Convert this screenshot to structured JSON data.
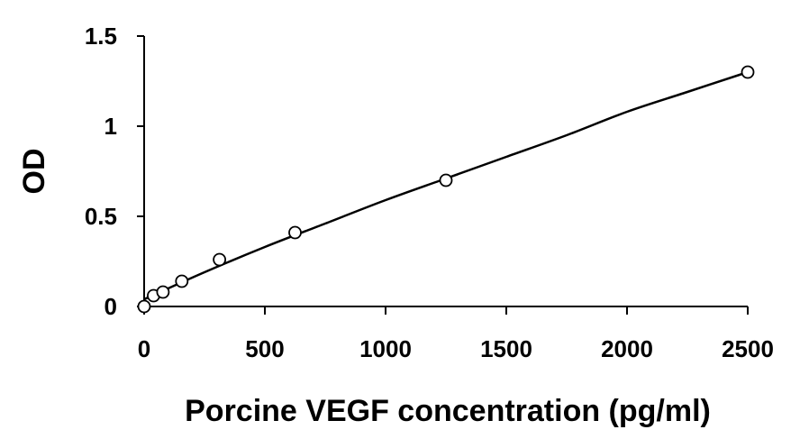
{
  "chart_data": {
    "type": "scatter",
    "title": "",
    "xlabel": "Porcine VEGF concentration (pg/ml)",
    "ylabel": "OD",
    "xlim": [
      0,
      2500
    ],
    "ylim": [
      0,
      1.5
    ],
    "x_ticks": [
      {
        "value": 0,
        "label": "0"
      },
      {
        "value": 500,
        "label": "500"
      },
      {
        "value": 1000,
        "label": "1000"
      },
      {
        "value": 1500,
        "label": "1500"
      },
      {
        "value": 2000,
        "label": "2000"
      },
      {
        "value": 2500,
        "label": "2500"
      }
    ],
    "y_ticks": [
      {
        "value": 0,
        "label": "0"
      },
      {
        "value": 0.5,
        "label": "0.5"
      },
      {
        "value": 1,
        "label": "1"
      },
      {
        "value": 1.5,
        "label": "1.5"
      }
    ],
    "grid": false,
    "legend": "none",
    "series": [
      {
        "marker": "open-circle",
        "points": [
          {
            "x": 0,
            "y": 0.0
          },
          {
            "x": 39,
            "y": 0.06
          },
          {
            "x": 78,
            "y": 0.08
          },
          {
            "x": 156,
            "y": 0.14
          },
          {
            "x": 312,
            "y": 0.26
          },
          {
            "x": 625,
            "y": 0.41
          },
          {
            "x": 1250,
            "y": 0.7
          },
          {
            "x": 2500,
            "y": 1.3
          }
        ]
      }
    ],
    "fit_curve": {
      "type": "smooth",
      "points": [
        {
          "x": 0,
          "y": 0.04
        },
        {
          "x": 250,
          "y": 0.19
        },
        {
          "x": 500,
          "y": 0.33
        },
        {
          "x": 750,
          "y": 0.46
        },
        {
          "x": 1000,
          "y": 0.59
        },
        {
          "x": 1250,
          "y": 0.71
        },
        {
          "x": 1500,
          "y": 0.83
        },
        {
          "x": 1750,
          "y": 0.95
        },
        {
          "x": 2000,
          "y": 1.08
        },
        {
          "x": 2250,
          "y": 1.19
        },
        {
          "x": 2500,
          "y": 1.3
        }
      ]
    },
    "colors": {
      "axis": "#000000",
      "marker_stroke": "#000000",
      "marker_fill": "#ffffff",
      "curve": "#000000"
    }
  }
}
